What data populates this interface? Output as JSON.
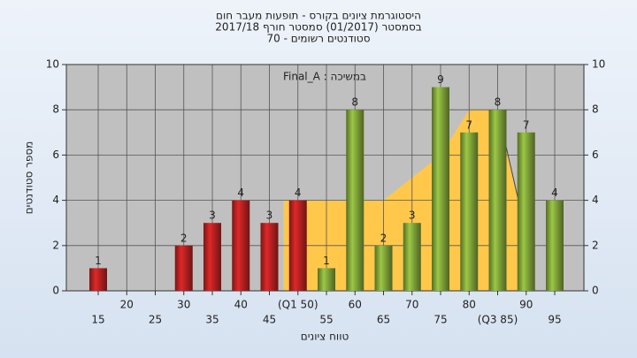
{
  "chart_data": {
    "type": "bar",
    "title": [
      "היסטוגרמת ציונים בקורס - תופעות מעבר חום",
      "בסמסטר  (01/2017)  סמסטר חורף  2017/18",
      "סטודנטים רשומים - 70"
    ],
    "annotation": "Final_A : במשיכה",
    "x_label": "טווח ציונים",
    "y_label": "מספר סטודנטים",
    "categories": [
      "15",
      "20",
      "25",
      "30",
      "35",
      "40",
      "45",
      "(Q1 50)",
      "55",
      "60",
      "65",
      "70",
      "75",
      "80",
      "(Q3 85)",
      "90",
      "95"
    ],
    "values": [
      1,
      0,
      0,
      2,
      3,
      4,
      3,
      4,
      1,
      8,
      2,
      3,
      9,
      7,
      8,
      7,
      4
    ],
    "colors": [
      "#e02828",
      "#e02828",
      "#e02828",
      "#e02828",
      "#e02828",
      "#e02828",
      "#e02828",
      "#e02828",
      "#9cc845",
      "#9cc845",
      "#9cc845",
      "#9cc845",
      "#9cc845",
      "#9cc845",
      "#9cc845",
      "#9cc845",
      "#9cc845"
    ],
    "area": {
      "color": "#ffc84a",
      "values": [
        null,
        null,
        null,
        null,
        null,
        null,
        null,
        4,
        4,
        4,
        4,
        5,
        6,
        8,
        8,
        2.5,
        null
      ]
    },
    "ylim": [
      0,
      10
    ],
    "yticks": [
      0,
      2,
      4,
      6,
      8,
      10
    ],
    "y2lim": [
      0,
      10
    ],
    "y2ticks": [
      0,
      2,
      4,
      6,
      8,
      10
    ],
    "grid": true
  }
}
